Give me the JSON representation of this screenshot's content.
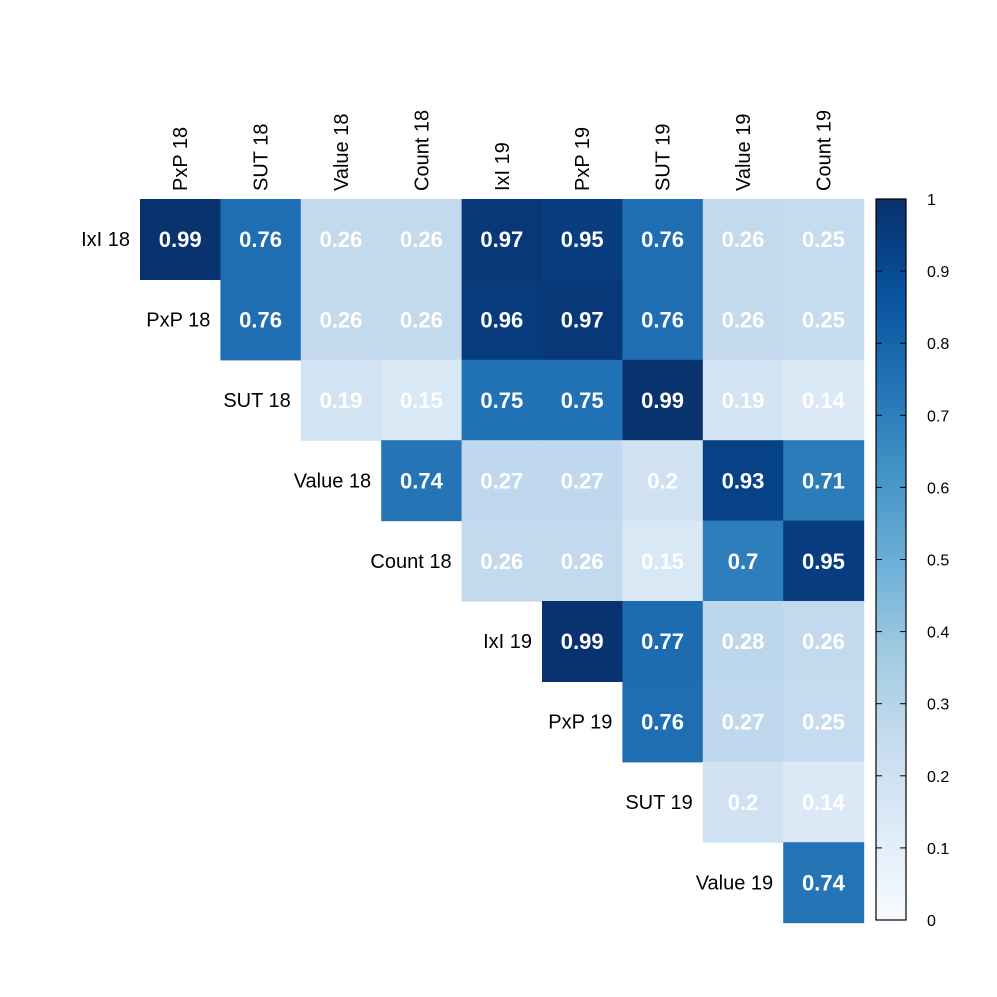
{
  "chart_data": {
    "type": "heatmap",
    "title": "",
    "row_labels": [
      "IxI 18",
      "PxP 18",
      "SUT 18",
      "Value 18",
      "Count 18",
      "IxI 19",
      "PxP 19",
      "SUT 19",
      "Value 19"
    ],
    "column_labels": [
      "PxP 18",
      "SUT 18",
      "Value 18",
      "Count 18",
      "IxI 19",
      "PxP 19",
      "SUT 19",
      "Value 19",
      "Count 19"
    ],
    "matrix_shape": "upper-triangular",
    "values": [
      [
        0.99,
        0.76,
        0.26,
        0.26,
        0.97,
        0.95,
        0.76,
        0.26,
        0.25
      ],
      [
        null,
        0.76,
        0.26,
        0.26,
        0.96,
        0.97,
        0.76,
        0.26,
        0.25
      ],
      [
        null,
        null,
        0.19,
        0.15,
        0.75,
        0.75,
        0.99,
        0.19,
        0.14
      ],
      [
        null,
        null,
        null,
        0.74,
        0.27,
        0.27,
        0.2,
        0.93,
        0.71
      ],
      [
        null,
        null,
        null,
        null,
        0.26,
        0.26,
        0.15,
        0.7,
        0.95
      ],
      [
        null,
        null,
        null,
        null,
        null,
        0.99,
        0.77,
        0.28,
        0.26
      ],
      [
        null,
        null,
        null,
        null,
        null,
        null,
        0.76,
        0.27,
        0.25
      ],
      [
        null,
        null,
        null,
        null,
        null,
        null,
        null,
        0.2,
        0.14
      ],
      [
        null,
        null,
        null,
        null,
        null,
        null,
        null,
        null,
        0.74
      ]
    ],
    "value_labels": [
      [
        "0.99",
        "0.76",
        "0.26",
        "0.26",
        "0.97",
        "0.95",
        "0.76",
        "0.26",
        "0.25"
      ],
      [
        null,
        "0.76",
        "0.26",
        "0.26",
        "0.96",
        "0.97",
        "0.76",
        "0.26",
        "0.25"
      ],
      [
        null,
        null,
        "0.19",
        "0.15",
        "0.75",
        "0.75",
        "0.99",
        "0.19",
        "0.14"
      ],
      [
        null,
        null,
        null,
        "0.74",
        "0.27",
        "0.27",
        "0.2",
        "0.93",
        "0.71"
      ],
      [
        null,
        null,
        null,
        null,
        "0.26",
        "0.26",
        "0.15",
        "0.7",
        "0.95"
      ],
      [
        null,
        null,
        null,
        null,
        null,
        "0.99",
        "0.77",
        "0.28",
        "0.26"
      ],
      [
        null,
        null,
        null,
        null,
        null,
        null,
        "0.76",
        "0.27",
        "0.25"
      ],
      [
        null,
        null,
        null,
        null,
        null,
        null,
        null,
        "0.2",
        "0.14"
      ],
      [
        null,
        null,
        null,
        null,
        null,
        null,
        null,
        null,
        "0.74"
      ]
    ],
    "color_scale": {
      "range": [
        0,
        1
      ],
      "palette": "Blues",
      "stops": [
        "#f7fbff",
        "#deebf7",
        "#c6dbef",
        "#9ecae1",
        "#6baed6",
        "#4292c6",
        "#2171b5",
        "#08519c",
        "#08306b"
      ],
      "ticks": [
        0,
        0.1,
        0.2,
        0.3,
        0.4,
        0.5,
        0.6,
        0.7,
        0.8,
        0.9,
        1
      ],
      "tick_labels": [
        "0",
        "0.1",
        "0.2",
        "0.3",
        "0.4",
        "0.5",
        "0.6",
        "0.7",
        "0.8",
        "0.9",
        "1"
      ],
      "legend_position": "right"
    },
    "grid": false
  }
}
